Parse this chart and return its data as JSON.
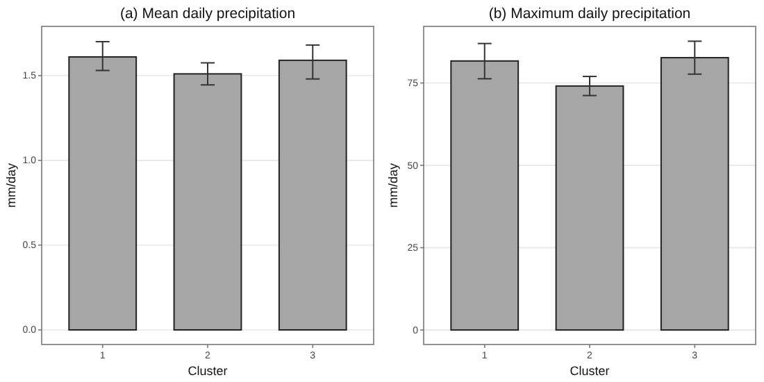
{
  "chart_data": [
    {
      "type": "bar",
      "title": "(a) Mean daily precipitation",
      "xlabel": "Cluster",
      "ylabel": "mm/day",
      "categories": [
        "1",
        "2",
        "3"
      ],
      "values": [
        1.61,
        1.51,
        1.59
      ],
      "errors": [
        [
          1.53,
          1.7
        ],
        [
          1.445,
          1.575
        ],
        [
          1.48,
          1.68
        ]
      ],
      "color": "#a6a6a6",
      "ylim": [
        -0.086,
        1.79
      ],
      "yticks": [
        {
          "value": 0,
          "label": "0.0"
        },
        {
          "value": 0.5,
          "label": "0.5"
        },
        {
          "value": 1,
          "label": "1.0"
        },
        {
          "value": 1.5,
          "label": "1.5"
        }
      ],
      "grid": "y"
    },
    {
      "type": "bar",
      "title": "(b) Maximum daily precipitation",
      "xlabel": "Cluster",
      "ylabel": "mm/day",
      "categories": [
        "1",
        "2",
        "3"
      ],
      "values": [
        81.7,
        74.1,
        82.7
      ],
      "errors": [
        [
          76.3,
          87.0
        ],
        [
          71.2,
          77.0
        ],
        [
          77.7,
          87.7
        ]
      ],
      "color": "#a6a6a6",
      "ylim": [
        -4.4,
        92.2
      ],
      "yticks": [
        0,
        25,
        50,
        75
      ],
      "grid": "y"
    }
  ]
}
